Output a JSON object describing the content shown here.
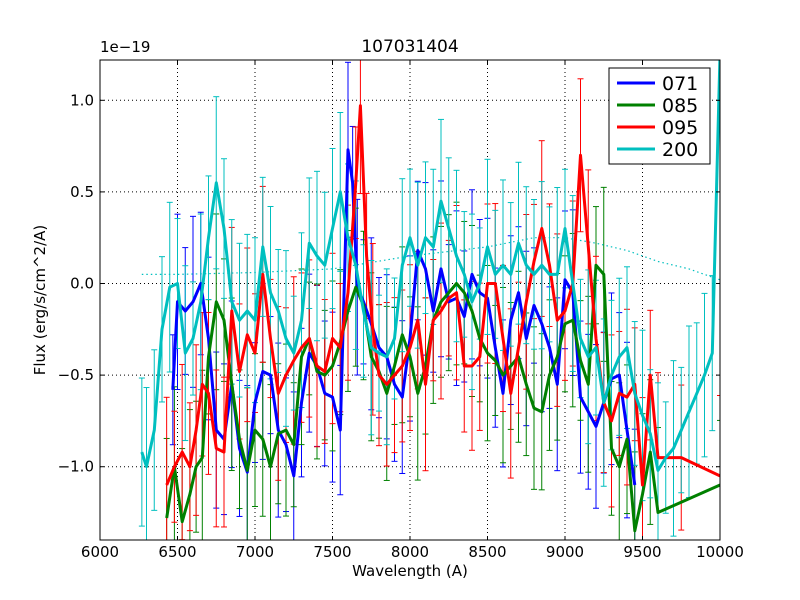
{
  "chart_data": {
    "type": "line",
    "title": "107031404",
    "xlabel": "Wavelength (A)",
    "ylabel": "Flux (erg/s/cm^2/A)",
    "offset_text": "1e−19",
    "xlim": [
      6000,
      10000
    ],
    "ylim": [
      -1.4,
      1.22
    ],
    "grid": true,
    "legend_position": "top-right",
    "x_ticks": [
      6000,
      6500,
      7000,
      7500,
      8000,
      8500,
      9000,
      9500,
      10000
    ],
    "x_tick_labels": [
      "6000",
      "6500",
      "7000",
      "7500",
      "8000",
      "8500",
      "9000",
      "9500",
      "10000"
    ],
    "y_ticks": [
      -1.0,
      -0.5,
      0.0,
      0.5,
      1.0
    ],
    "y_tick_labels": [
      "−1.0",
      "−0.5",
      "0.0",
      "0.5",
      "1.0"
    ],
    "series": [
      {
        "name": "071",
        "color": "#0000ff",
        "x": [
          6470,
          6500,
          6550,
          6600,
          6650,
          6700,
          6750,
          6800,
          6850,
          6900,
          6950,
          7000,
          7050,
          7100,
          7150,
          7200,
          7250,
          7300,
          7350,
          7400,
          7450,
          7500,
          7550,
          7600,
          7630,
          7660,
          7700,
          7750,
          7800,
          7850,
          7900,
          7950,
          8000,
          8050,
          8100,
          8150,
          8200,
          8250,
          8300,
          8350,
          8400,
          8450,
          8500,
          8550,
          8600,
          8650,
          8700,
          8750,
          8800,
          8850,
          8900,
          8950,
          9000,
          9050,
          9100,
          9150,
          9200,
          9250,
          9300,
          9350,
          9400,
          9450
        ],
        "y": [
          -0.58,
          -0.1,
          -0.15,
          -0.1,
          0.0,
          -0.3,
          -0.8,
          -0.85,
          -0.55,
          -0.9,
          -1.03,
          -0.65,
          -0.48,
          -0.5,
          -0.8,
          -0.88,
          -1.05,
          -0.65,
          -0.38,
          -0.45,
          -0.6,
          -0.62,
          -0.8,
          0.73,
          0.55,
          -0.02,
          -0.1,
          -0.22,
          -0.35,
          -0.4,
          -0.55,
          -0.62,
          -0.3,
          0.18,
          0.08,
          -0.15,
          0.08,
          -0.1,
          -0.08,
          -0.18,
          0.05,
          -0.05,
          -0.08,
          -0.35,
          -0.6,
          -0.2,
          -0.05,
          -0.3,
          -0.12,
          -0.22,
          -0.35,
          -0.55,
          0.02,
          -0.05,
          -0.62,
          -0.7,
          -0.78,
          -0.65,
          -0.52,
          -0.5,
          -0.8,
          -1.1
        ]
      },
      {
        "name": "085",
        "color": "#008000",
        "x": [
          6430,
          6480,
          6530,
          6580,
          6620,
          6660,
          6700,
          6750,
          6800,
          6850,
          6900,
          6950,
          7000,
          7050,
          7100,
          7150,
          7200,
          7250,
          7300,
          7350,
          7400,
          7450,
          7500,
          7550,
          7600,
          7650,
          7700,
          7750,
          7800,
          7850,
          7900,
          7950,
          8000,
          8050,
          8100,
          8150,
          8200,
          8250,
          8300,
          8350,
          8400,
          8450,
          8500,
          8550,
          8600,
          8650,
          8700,
          8750,
          8800,
          8850,
          8900,
          8950,
          9000,
          9050,
          9100,
          9150,
          9200,
          9250,
          9300,
          9350,
          9400,
          9450,
          9500,
          9550,
          9600,
          10000
        ],
        "y": [
          -1.28,
          -1.0,
          -1.3,
          -1.15,
          -1.0,
          -0.95,
          -0.4,
          -0.1,
          -0.2,
          -0.55,
          -0.85,
          -1.02,
          -0.8,
          -0.85,
          -1.0,
          -0.82,
          -0.8,
          -0.88,
          -0.4,
          -0.3,
          -0.48,
          -0.5,
          -0.45,
          -0.32,
          -0.15,
          -0.02,
          -0.12,
          -0.4,
          -0.48,
          -0.6,
          -0.45,
          -0.28,
          -0.4,
          -0.6,
          -0.45,
          -0.2,
          -0.1,
          -0.05,
          0.0,
          -0.05,
          -0.15,
          -0.3,
          -0.38,
          -0.42,
          -0.5,
          -0.45,
          -0.4,
          -0.55,
          -0.68,
          -0.7,
          -0.5,
          -0.4,
          -0.22,
          -0.2,
          -0.42,
          -0.55,
          0.1,
          0.05,
          -0.9,
          -1.0,
          -0.85,
          -1.35,
          -1.15,
          -0.92,
          -1.25,
          -1.1
        ]
      },
      {
        "name": "095",
        "color": "#ff0000",
        "x": [
          6430,
          6480,
          6530,
          6580,
          6620,
          6660,
          6700,
          6750,
          6800,
          6850,
          6900,
          6950,
          7000,
          7050,
          7100,
          7150,
          7200,
          7250,
          7300,
          7350,
          7400,
          7450,
          7500,
          7550,
          7600,
          7650,
          7680,
          7720,
          7760,
          7800,
          7850,
          7900,
          7950,
          8000,
          8050,
          8100,
          8150,
          8200,
          8250,
          8300,
          8350,
          8400,
          8450,
          8500,
          8550,
          8600,
          8650,
          8700,
          8750,
          8800,
          8850,
          8900,
          8950,
          9000,
          9050,
          9100,
          9150,
          9200,
          9250,
          9300,
          9350,
          9400,
          9450,
          9500,
          9550,
          9600,
          9750,
          10000
        ],
        "y": [
          -1.1,
          -1.0,
          -0.92,
          -1.0,
          -0.8,
          -0.55,
          -0.6,
          -0.9,
          -0.92,
          -0.15,
          -0.48,
          -0.28,
          -0.38,
          0.05,
          -0.3,
          -0.6,
          -0.5,
          -0.42,
          -0.35,
          -0.3,
          -0.45,
          -0.48,
          -0.3,
          -0.35,
          -0.05,
          0.55,
          0.97,
          0.15,
          -0.25,
          -0.5,
          -0.55,
          -0.5,
          -0.45,
          -0.35,
          -0.2,
          -0.55,
          -0.2,
          -0.15,
          -0.08,
          -0.05,
          -0.45,
          -0.45,
          -0.4,
          0.0,
          0.0,
          -0.3,
          -0.6,
          -0.35,
          -0.1,
          0.12,
          0.3,
          0.1,
          -0.2,
          -0.15,
          0.0,
          0.7,
          0.2,
          -0.3,
          -0.65,
          -0.75,
          -0.6,
          -0.62,
          -0.55,
          -1.1,
          -0.5,
          -0.95,
          -0.95,
          -1.05
        ]
      },
      {
        "name": "200",
        "color": "#00bfbf",
        "x": [
          6270,
          6300,
          6350,
          6400,
          6450,
          6500,
          6550,
          6600,
          6650,
          6700,
          6750,
          6800,
          6850,
          6900,
          6950,
          7000,
          7050,
          7100,
          7150,
          7200,
          7250,
          7300,
          7350,
          7400,
          7450,
          7500,
          7550,
          7600,
          7650,
          7700,
          7750,
          7800,
          7850,
          7900,
          7950,
          8000,
          8050,
          8100,
          8150,
          8200,
          8250,
          8300,
          8350,
          8400,
          8450,
          8500,
          8550,
          8600,
          8650,
          8700,
          8750,
          8800,
          8850,
          8900,
          8950,
          9000,
          9050,
          9100,
          9150,
          9200,
          9250,
          9300,
          9350,
          9400,
          9450,
          9500,
          9550,
          9600,
          9650,
          9700,
          9750,
          9800,
          9850,
          9900,
          9950,
          10000
        ],
        "y": [
          -0.92,
          -1.0,
          -0.8,
          -0.25,
          -0.02,
          0.0,
          -0.38,
          -0.3,
          -0.1,
          0.25,
          0.55,
          0.3,
          -0.1,
          -0.2,
          -0.15,
          -0.2,
          0.2,
          -0.05,
          -0.15,
          -0.3,
          -0.38,
          -0.2,
          0.22,
          0.15,
          0.1,
          0.3,
          0.5,
          0.25,
          0.1,
          -0.15,
          -0.35,
          -0.38,
          -0.4,
          -0.3,
          0.1,
          0.25,
          0.1,
          0.25,
          0.2,
          0.45,
          0.3,
          0.15,
          0.05,
          -0.1,
          0.0,
          0.2,
          0.05,
          0.1,
          0.05,
          0.22,
          0.1,
          0.05,
          0.1,
          0.05,
          0.05,
          0.3,
          0.0,
          -0.3,
          -0.4,
          -0.35,
          -0.65,
          -0.5,
          -0.4,
          -0.35,
          -0.6,
          -0.72,
          -0.82,
          -1.02,
          -0.95,
          -0.9,
          -0.8,
          -0.7,
          -0.6,
          -0.5,
          -0.38,
          1.25
        ]
      }
    ],
    "reference_line": {
      "style": "dotted",
      "color": "#00bfbf",
      "x": [
        6270,
        6500,
        7000,
        7500,
        8000,
        8500,
        8800,
        9000,
        9200,
        9400,
        9500,
        9600,
        9700,
        9800,
        9900,
        10000
      ],
      "y": [
        0.05,
        0.05,
        0.06,
        0.08,
        0.15,
        0.2,
        0.25,
        0.25,
        0.22,
        0.18,
        0.15,
        0.12,
        0.1,
        0.08,
        0.05,
        0.02
      ]
    }
  }
}
